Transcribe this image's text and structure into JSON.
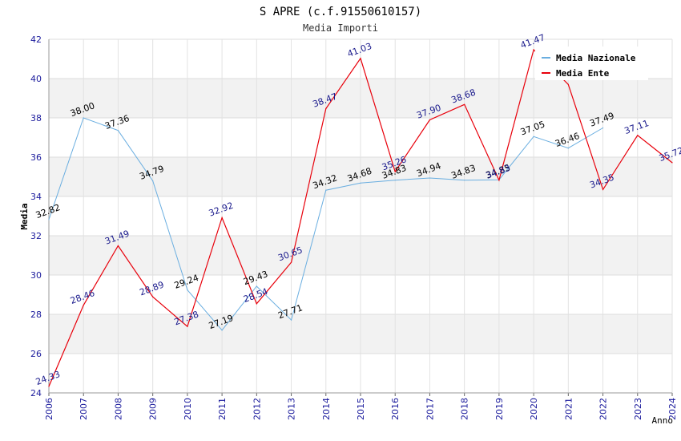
{
  "chart_data": {
    "type": "line",
    "title": "S APRE (c.f.91550610157)",
    "subtitle": "Media Importi",
    "xlabel": "Anno",
    "ylabel": "Media",
    "ylim": [
      24,
      42
    ],
    "yticks": [
      24,
      26,
      28,
      30,
      32,
      34,
      36,
      38,
      40,
      42
    ],
    "categories": [
      "2006",
      "2007",
      "2008",
      "2009",
      "2010",
      "2011",
      "2012",
      "2013",
      "2014",
      "2015",
      "2016",
      "2017",
      "2018",
      "2019",
      "2020",
      "2021",
      "2022",
      "2023",
      "2024"
    ],
    "legend_position": "top-right",
    "grid": true,
    "series": [
      {
        "name": "Media Nazionale",
        "color": "#6aaee0",
        "label_color": "#000000",
        "values": [
          32.82,
          38.0,
          37.36,
          34.79,
          29.24,
          27.19,
          29.43,
          27.71,
          34.32,
          34.68,
          34.83,
          34.94,
          34.83,
          34.85,
          37.05,
          36.46,
          37.49,
          null,
          null
        ],
        "labels": [
          "32.82",
          "38.00",
          "37.36",
          "34.79",
          "29.24",
          "27.19",
          "29.43",
          "27.71",
          "34.32",
          "34.68",
          "34.83",
          "34.94",
          "34.83",
          "34.85",
          "37.05",
          "36.46",
          "37.49",
          null,
          null
        ]
      },
      {
        "name": "Media Ente",
        "color": "#e8000b",
        "label_color": "#1a1a8c",
        "values": [
          24.33,
          28.46,
          31.49,
          28.89,
          27.38,
          32.92,
          28.54,
          30.65,
          38.47,
          41.03,
          35.26,
          37.9,
          38.68,
          34.83,
          41.47,
          39.7,
          34.35,
          37.11,
          35.72
        ],
        "labels": [
          "24.33",
          "28.46",
          "31.49",
          "28.89",
          "27.38",
          "32.92",
          "28.54",
          "30.65",
          "38.47",
          "41.03",
          "35.26",
          "37.90",
          "38.68",
          "34.83",
          "41.47",
          null,
          "34.35",
          "37.11",
          "35.72"
        ]
      }
    ]
  }
}
